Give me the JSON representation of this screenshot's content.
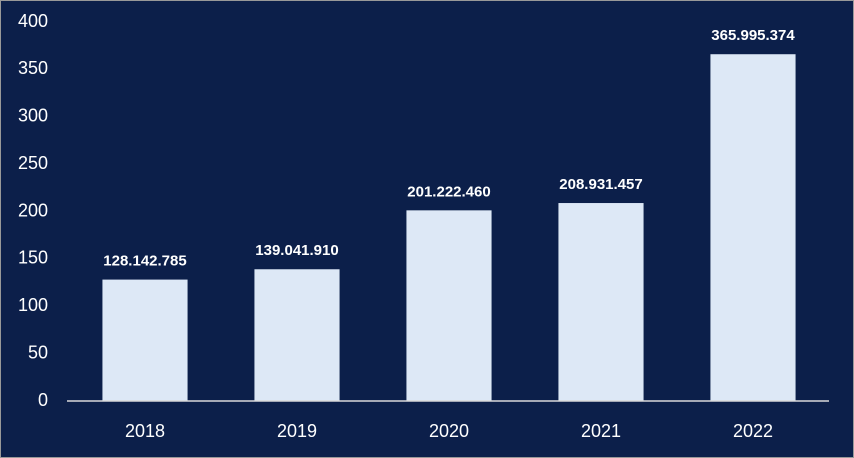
{
  "chart_data": {
    "type": "bar",
    "categories": [
      "2018",
      "2019",
      "2020",
      "2021",
      "2022"
    ],
    "values": [
      128.142785,
      139.04191,
      201.22246,
      208.931457,
      365.995374
    ],
    "value_labels": [
      "128.142.785",
      "139.041.910",
      "201.222.460",
      "208.931.457",
      "365.995.374"
    ],
    "color": "#dde8f6",
    "ylim": [
      0,
      400
    ],
    "yticks": [
      0,
      50,
      100,
      150,
      200,
      250,
      300,
      350,
      400
    ],
    "grid": false
  }
}
